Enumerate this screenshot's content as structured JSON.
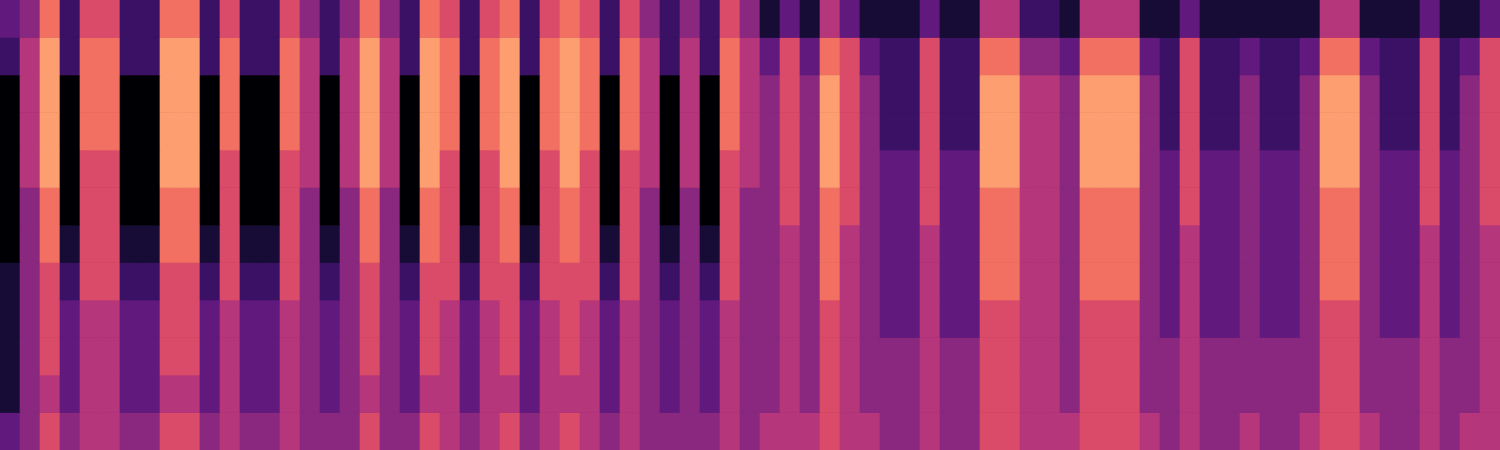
{
  "chart_data": {
    "type": "heatmap",
    "tick_labels": false,
    "zlim": [
      0,
      10
    ],
    "cells": [
      [
        3,
        4,
        7,
        2,
        6,
        6,
        2,
        2,
        7,
        7,
        2,
        6,
        2,
        2,
        6,
        4,
        2,
        4,
        7,
        4,
        2,
        7,
        6,
        2,
        6,
        7,
        2,
        6,
        7,
        6,
        2,
        6,
        4,
        2,
        4,
        2,
        6,
        4,
        1,
        3,
        1,
        5,
        3,
        1,
        1,
        1,
        3,
        1,
        1,
        5,
        5,
        2,
        2,
        1,
        5,
        5,
        5,
        1,
        1,
        3,
        1,
        1,
        1,
        1,
        1,
        1,
        5,
        5,
        1,
        1,
        1,
        3,
        1,
        1,
        3
      ],
      [
        2,
        5,
        8,
        2,
        7,
        7,
        2,
        2,
        8,
        8,
        2,
        7,
        2,
        2,
        7,
        5,
        2,
        5,
        8,
        5,
        2,
        8,
        7,
        2,
        7,
        8,
        2,
        7,
        8,
        7,
        2,
        7,
        5,
        2,
        5,
        2,
        7,
        5,
        3,
        6,
        3,
        7,
        6,
        3,
        2,
        2,
        6,
        2,
        2,
        7,
        7,
        4,
        4,
        3,
        7,
        7,
        7,
        3,
        2,
        6,
        2,
        2,
        3,
        2,
        2,
        3,
        7,
        7,
        3,
        2,
        2,
        6,
        2,
        3,
        6
      ],
      [
        0,
        5,
        8,
        0,
        7,
        7,
        0,
        0,
        8,
        8,
        0,
        7,
        0,
        0,
        7,
        5,
        0,
        5,
        8,
        5,
        0,
        8,
        7,
        0,
        7,
        8,
        0,
        7,
        8,
        7,
        0,
        7,
        5,
        0,
        5,
        0,
        7,
        5,
        4,
        6,
        4,
        8,
        6,
        4,
        2,
        2,
        6,
        2,
        2,
        8,
        8,
        5,
        5,
        4,
        8,
        8,
        8,
        4,
        2,
        6,
        2,
        2,
        4,
        2,
        2,
        4,
        8,
        8,
        4,
        2,
        2,
        6,
        2,
        4,
        6
      ],
      [
        0,
        5,
        8,
        0,
        7,
        7,
        0,
        0,
        8,
        8,
        0,
        7,
        0,
        0,
        7,
        5,
        0,
        5,
        8,
        5,
        0,
        8,
        7,
        0,
        7,
        8,
        0,
        7,
        8,
        7,
        0,
        7,
        5,
        0,
        5,
        0,
        7,
        5,
        4,
        6,
        4,
        8,
        6,
        4,
        2,
        2,
        6,
        2,
        2,
        8,
        8,
        5,
        5,
        4,
        8,
        8,
        8,
        4,
        2,
        6,
        2,
        2,
        4,
        2,
        2,
        4,
        8,
        8,
        4,
        2,
        2,
        6,
        2,
        4,
        6
      ],
      [
        0,
        5,
        8,
        0,
        6,
        6,
        0,
        0,
        8,
        8,
        0,
        6,
        0,
        0,
        6,
        5,
        0,
        5,
        8,
        5,
        0,
        8,
        6,
        0,
        6,
        8,
        0,
        6,
        8,
        6,
        0,
        6,
        5,
        0,
        5,
        0,
        6,
        5,
        4,
        6,
        4,
        8,
        6,
        4,
        3,
        3,
        6,
        3,
        3,
        8,
        8,
        5,
        5,
        4,
        8,
        8,
        8,
        4,
        3,
        6,
        3,
        3,
        4,
        3,
        3,
        4,
        8,
        8,
        4,
        3,
        3,
        6,
        3,
        4,
        6
      ],
      [
        0,
        4,
        7,
        0,
        6,
        6,
        0,
        0,
        7,
        7,
        0,
        6,
        0,
        0,
        6,
        4,
        0,
        4,
        7,
        4,
        0,
        7,
        6,
        0,
        6,
        7,
        0,
        6,
        7,
        6,
        0,
        6,
        4,
        0,
        4,
        0,
        6,
        4,
        4,
        6,
        4,
        7,
        6,
        4,
        3,
        3,
        6,
        3,
        3,
        7,
        7,
        5,
        5,
        4,
        7,
        7,
        7,
        4,
        3,
        6,
        3,
        3,
        4,
        3,
        3,
        4,
        7,
        7,
        4,
        3,
        3,
        6,
        3,
        4,
        6
      ],
      [
        0,
        4,
        7,
        1,
        6,
        6,
        1,
        1,
        7,
        7,
        1,
        6,
        1,
        1,
        6,
        4,
        1,
        4,
        7,
        4,
        1,
        7,
        6,
        1,
        6,
        7,
        1,
        6,
        7,
        6,
        1,
        6,
        4,
        1,
        4,
        1,
        6,
        4,
        4,
        5,
        4,
        7,
        5,
        4,
        3,
        3,
        5,
        3,
        3,
        7,
        7,
        5,
        5,
        4,
        7,
        7,
        7,
        4,
        3,
        5,
        3,
        3,
        4,
        3,
        3,
        4,
        7,
        7,
        4,
        3,
        3,
        5,
        3,
        4,
        5
      ],
      [
        1,
        4,
        6,
        2,
        6,
        6,
        2,
        2,
        6,
        6,
        2,
        6,
        2,
        2,
        6,
        4,
        2,
        4,
        6,
        4,
        2,
        6,
        6,
        2,
        6,
        6,
        2,
        6,
        6,
        6,
        2,
        6,
        4,
        2,
        4,
        2,
        6,
        4,
        4,
        5,
        4,
        7,
        5,
        4,
        3,
        3,
        5,
        3,
        3,
        7,
        7,
        5,
        5,
        4,
        7,
        7,
        7,
        4,
        3,
        5,
        3,
        3,
        4,
        3,
        3,
        4,
        7,
        7,
        4,
        3,
        3,
        5,
        3,
        4,
        5
      ],
      [
        1,
        4,
        6,
        3,
        5,
        5,
        3,
        3,
        6,
        6,
        3,
        5,
        3,
        3,
        5,
        4,
        3,
        4,
        6,
        4,
        3,
        6,
        5,
        3,
        5,
        6,
        3,
        5,
        6,
        5,
        3,
        5,
        4,
        3,
        4,
        3,
        5,
        4,
        4,
        5,
        4,
        6,
        5,
        4,
        3,
        3,
        5,
        3,
        3,
        6,
        6,
        5,
        5,
        4,
        6,
        6,
        6,
        4,
        3,
        5,
        3,
        3,
        4,
        3,
        3,
        4,
        6,
        6,
        4,
        3,
        3,
        5,
        3,
        4,
        5
      ],
      [
        1,
        4,
        6,
        3,
        5,
        5,
        3,
        3,
        6,
        6,
        3,
        5,
        3,
        3,
        5,
        4,
        3,
        4,
        6,
        4,
        3,
        6,
        5,
        3,
        5,
        6,
        3,
        5,
        6,
        5,
        3,
        5,
        4,
        3,
        4,
        3,
        5,
        4,
        4,
        5,
        4,
        6,
        5,
        4,
        4,
        4,
        5,
        4,
        4,
        6,
        6,
        5,
        5,
        4,
        6,
        6,
        6,
        4,
        4,
        5,
        4,
        4,
        4,
        4,
        4,
        4,
        6,
        6,
        4,
        4,
        4,
        5,
        4,
        4,
        5
      ],
      [
        1,
        4,
        5,
        3,
        5,
        5,
        3,
        3,
        5,
        5,
        3,
        5,
        3,
        3,
        5,
        4,
        3,
        4,
        5,
        4,
        3,
        5,
        5,
        3,
        5,
        5,
        3,
        5,
        5,
        5,
        3,
        5,
        4,
        3,
        4,
        3,
        5,
        4,
        4,
        5,
        4,
        6,
        5,
        4,
        4,
        4,
        5,
        4,
        4,
        6,
        6,
        5,
        5,
        4,
        6,
        6,
        6,
        4,
        4,
        5,
        4,
        4,
        4,
        4,
        4,
        4,
        6,
        6,
        4,
        4,
        4,
        5,
        4,
        4,
        5
      ],
      [
        3,
        4,
        6,
        4,
        5,
        5,
        4,
        4,
        6,
        6,
        4,
        5,
        4,
        4,
        5,
        4,
        4,
        4,
        6,
        4,
        4,
        6,
        5,
        4,
        5,
        6,
        4,
        5,
        6,
        5,
        4,
        5,
        4,
        4,
        4,
        4,
        5,
        4,
        5,
        5,
        5,
        6,
        5,
        5,
        4,
        4,
        5,
        4,
        4,
        6,
        6,
        5,
        5,
        5,
        6,
        6,
        6,
        5,
        4,
        5,
        4,
        4,
        5,
        4,
        4,
        5,
        6,
        6,
        5,
        4,
        4,
        5,
        4,
        5,
        5
      ]
    ]
  }
}
